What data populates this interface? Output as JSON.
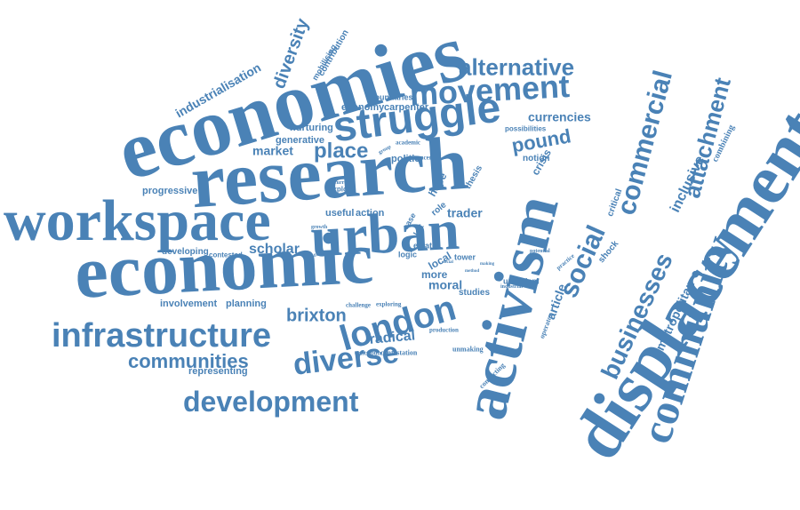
{
  "accent_color": "#4a82b6",
  "words": [
    {
      "id": "economies",
      "text": "economies"
    },
    {
      "id": "research",
      "text": "research"
    },
    {
      "id": "workspace",
      "text": "workspace"
    },
    {
      "id": "urban",
      "text": "urban"
    },
    {
      "id": "economic",
      "text": "economic"
    },
    {
      "id": "struggle",
      "text": "struggle"
    },
    {
      "id": "movement",
      "text": "movement"
    },
    {
      "id": "alternative",
      "text": "alternative"
    },
    {
      "id": "commercial",
      "text": "commercial"
    },
    {
      "id": "attachment",
      "text": "attachment"
    },
    {
      "id": "activism",
      "text": "activism"
    },
    {
      "id": "displacement",
      "text": "displacement"
    },
    {
      "id": "community",
      "text": "community"
    },
    {
      "id": "businesses",
      "text": "businesses"
    },
    {
      "id": "metropolitan",
      "text": "metropolitan"
    },
    {
      "id": "inclusive",
      "text": "inclusive"
    },
    {
      "id": "combining",
      "text": "combining"
    },
    {
      "id": "infrastructure",
      "text": "infrastructure"
    },
    {
      "id": "london",
      "text": "london"
    },
    {
      "id": "diverse",
      "text": "diverse"
    },
    {
      "id": "development",
      "text": "development"
    },
    {
      "id": "communities",
      "text": "communities"
    },
    {
      "id": "brixton",
      "text": "brixton"
    },
    {
      "id": "social",
      "text": "social"
    },
    {
      "id": "pound",
      "text": "pound"
    },
    {
      "id": "place",
      "text": "place"
    },
    {
      "id": "market",
      "text": "market"
    },
    {
      "id": "politic",
      "text": "politic"
    },
    {
      "id": "currencies",
      "text": "currencies"
    },
    {
      "id": "crisis",
      "text": "crisis"
    },
    {
      "id": "notion",
      "text": "notion"
    },
    {
      "id": "possibilities",
      "text": "possibilities"
    },
    {
      "id": "diversity",
      "text": "diversity"
    },
    {
      "id": "industrialisation",
      "text": "industrialisation"
    },
    {
      "id": "mobilising",
      "text": "mobilising"
    },
    {
      "id": "contribution",
      "text": "contribution"
    },
    {
      "id": "boundaries",
      "text": "boundaries"
    },
    {
      "id": "economy",
      "text": "economy"
    },
    {
      "id": "carpenter",
      "text": "carpenter"
    },
    {
      "id": "nurturing",
      "text": "nurturing"
    },
    {
      "id": "generative",
      "text": "generative"
    },
    {
      "id": "academic",
      "text": "academic"
    },
    {
      "id": "group",
      "text": "group"
    },
    {
      "id": "concern",
      "text": "concern"
    },
    {
      "id": "progressive",
      "text": "progressive"
    },
    {
      "id": "explore",
      "text": "explore"
    },
    {
      "id": "currency",
      "text": "currency"
    },
    {
      "id": "useful",
      "text": "useful"
    },
    {
      "id": "action",
      "text": "action"
    },
    {
      "id": "trader",
      "text": "trader"
    },
    {
      "id": "hope",
      "text": "hope"
    },
    {
      "id": "thesis",
      "text": "thesis"
    },
    {
      "id": "role",
      "text": "role"
    },
    {
      "id": "critical",
      "text": "critical"
    },
    {
      "id": "scholar",
      "text": "scholar"
    },
    {
      "id": "developing",
      "text": "developing"
    },
    {
      "id": "contested",
      "text": "contested"
    },
    {
      "id": "growth",
      "text": "growth"
    },
    {
      "id": "logic",
      "text": "logic"
    },
    {
      "id": "estate",
      "text": "estate"
    },
    {
      "id": "tower",
      "text": "tower"
    },
    {
      "id": "more",
      "text": "more"
    },
    {
      "id": "moral",
      "text": "moral"
    },
    {
      "id": "local",
      "text": "local"
    },
    {
      "id": "left",
      "text": "left"
    },
    {
      "id": "case",
      "text": "case"
    },
    {
      "id": "studies",
      "text": "studies"
    },
    {
      "id": "urbanism",
      "text": "urbanism"
    },
    {
      "id": "industrial",
      "text": "industrial"
    },
    {
      "id": "article",
      "text": "article"
    },
    {
      "id": "potential",
      "text": "potential"
    },
    {
      "id": "practice",
      "text": "practice"
    },
    {
      "id": "shock",
      "text": "shock"
    },
    {
      "id": "operator",
      "text": "operator"
    },
    {
      "id": "involvement",
      "text": "involvement"
    },
    {
      "id": "planning",
      "text": "planning"
    },
    {
      "id": "challenge",
      "text": "challenge"
    },
    {
      "id": "exploring",
      "text": "exploring"
    },
    {
      "id": "production",
      "text": "production"
    },
    {
      "id": "radical",
      "text": "radical"
    },
    {
      "id": "contestation",
      "text": "contestation"
    },
    {
      "id": "contribute",
      "text": "contribute"
    },
    {
      "id": "unmaking",
      "text": "unmaking"
    },
    {
      "id": "representing",
      "text": "representing"
    },
    {
      "id": "connecting",
      "text": "connecting"
    },
    {
      "id": "global",
      "text": "global"
    },
    {
      "id": "social2",
      "text": "social"
    },
    {
      "id": "making",
      "text": "making"
    },
    {
      "id": "method",
      "text": "method"
    }
  ]
}
